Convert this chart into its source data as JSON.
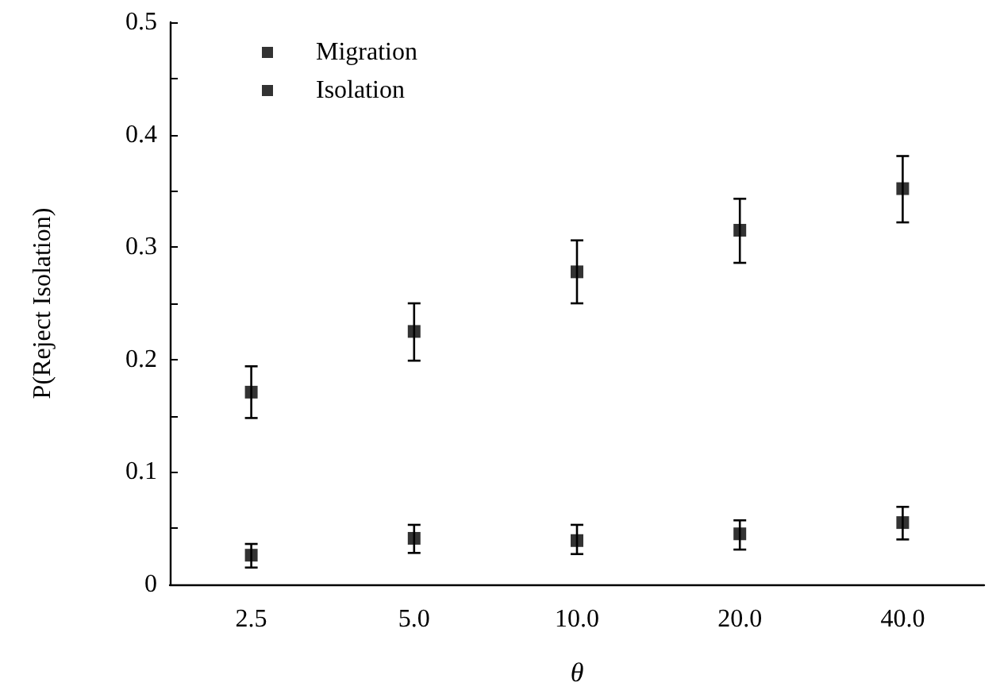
{
  "chart_data": {
    "type": "scatter",
    "xlabel": "θ",
    "ylabel": "P(Reject Isolation)",
    "categories": [
      "2.5",
      "5.0",
      "10.0",
      "20.0",
      "40.0"
    ],
    "series": [
      {
        "name": "Migration",
        "color": "#000000",
        "marker": "square",
        "values": [
          0.171,
          0.225,
          0.278,
          0.315,
          0.352
        ],
        "errors": [
          [
            0.148,
            0.194
          ],
          [
            0.199,
            0.25
          ],
          [
            0.25,
            0.306
          ],
          [
            0.286,
            0.343
          ],
          [
            0.322,
            0.381
          ]
        ]
      },
      {
        "name": "Isolation",
        "color": "#000000",
        "marker": "square",
        "values": [
          0.026,
          0.041,
          0.039,
          0.045,
          0.055
        ],
        "errors": [
          [
            0.015,
            0.036
          ],
          [
            0.028,
            0.053
          ],
          [
            0.027,
            0.053
          ],
          [
            0.031,
            0.057
          ],
          [
            0.04,
            0.069
          ]
        ]
      }
    ],
    "ylim": [
      0,
      0.5
    ],
    "yticks": [
      0,
      {
        "value": 0.05,
        "label": null
      },
      {
        "value": 0.1,
        "label": "0.1"
      },
      {
        "value": 0.15,
        "label": null
      },
      {
        "value": 0.2,
        "label": "0.2"
      },
      {
        "value": 0.25,
        "label": null
      },
      {
        "value": 0.3,
        "label": "0.3"
      },
      {
        "value": 0.35,
        "label": null
      },
      {
        "value": 0.4,
        "label": "0.4"
      },
      {
        "value": 0.45,
        "label": null
      },
      {
        "value": 0.5,
        "label": "0.5"
      }
    ],
    "legend": "top left",
    "grid": false
  }
}
